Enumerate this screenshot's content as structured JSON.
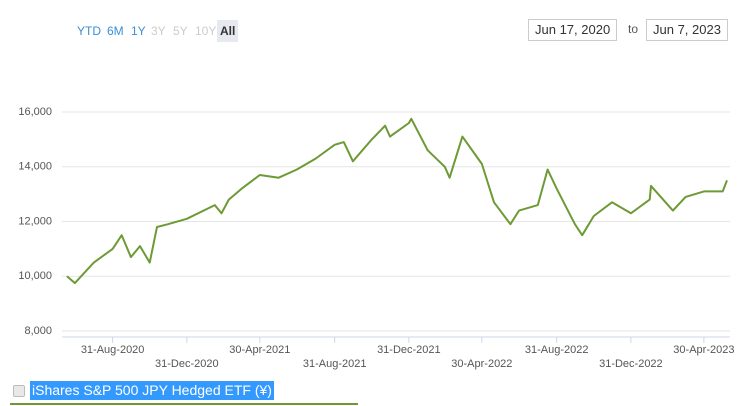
{
  "ui": {
    "range_buttons": [
      "YTD",
      "6M",
      "1Y",
      "3Y",
      "5Y",
      "10Y",
      "All"
    ],
    "date_from": "Jun 17, 2020",
    "date_to_word": "to",
    "date_to": "Jun 7, 2023"
  },
  "chart_data": {
    "type": "line",
    "series": [
      {
        "name": "iShares S&P 500 JPY Hedged ETF (¥)",
        "color": "#6d9a35",
        "x": [
          "17-Jun-2020",
          "30-Jun-2020",
          "31-Jul-2020",
          "31-Aug-2020",
          "15-Sep-2020",
          "30-Sep-2020",
          "15-Oct-2020",
          "31-Oct-2020",
          "12-Nov-2020",
          "30-Nov-2020",
          "31-Dec-2020",
          "15-Feb-2021",
          "26-Feb-2021",
          "10-Mar-2021",
          "31-Mar-2021",
          "30-Apr-2021",
          "31-May-2021",
          "30-Jun-2021",
          "31-Jul-2021",
          "31-Aug-2021",
          "15-Sep-2021",
          "30-Sep-2021",
          "31-Oct-2021",
          "22-Nov-2021",
          "30-Nov-2021",
          "31-Dec-2021",
          "4-Jan-2022",
          "31-Jan-2022",
          "28-Feb-2022",
          "8-Mar-2022",
          "29-Mar-2022",
          "30-Apr-2022",
          "20-May-2022",
          "16-Jun-2022",
          "30-Jun-2022",
          "31-Jul-2022",
          "16-Aug-2022",
          "31-Aug-2022",
          "30-Sep-2022",
          "12-Oct-2022",
          "31-Oct-2022",
          "30-Nov-2022",
          "31-Dec-2022",
          "31-Jan-2023",
          "2-Feb-2023",
          "10-Mar-2023",
          "31-Mar-2023",
          "30-Apr-2023",
          "31-May-2023",
          "7-Jun-2023"
        ],
        "values": [
          10000,
          9750,
          10500,
          11000,
          11500,
          10700,
          11100,
          10500,
          11800,
          11900,
          12100,
          12600,
          12300,
          12800,
          13200,
          13700,
          13600,
          13900,
          14300,
          14800,
          14900,
          14200,
          15000,
          15500,
          15100,
          15600,
          15750,
          14600,
          14000,
          13600,
          15100,
          14100,
          12700,
          11900,
          12400,
          12600,
          13900,
          13200,
          11900,
          11500,
          12200,
          12700,
          12300,
          12800,
          13300,
          12400,
          12900,
          13100,
          13100,
          13500
        ]
      }
    ],
    "xlim": [
      "17-Jun-2020",
      "7-Jun-2023"
    ],
    "xticks": [
      "31-Aug-2020",
      "31-Dec-2020",
      "30-Apr-2021",
      "31-Aug-2021",
      "31-Dec-2021",
      "30-Apr-2022",
      "31-Aug-2022",
      "31-Dec-2022",
      "30-Apr-2023"
    ],
    "ylim": [
      8000,
      16000
    ],
    "yticks": [
      {
        "value": 8000,
        "label": "8,000"
      },
      {
        "value": 10000,
        "label": "10,000"
      },
      {
        "value": 12000,
        "label": "12,000"
      },
      {
        "value": 14000,
        "label": "14,000"
      },
      {
        "value": 16000,
        "label": "16,000"
      }
    ],
    "grid": true
  }
}
